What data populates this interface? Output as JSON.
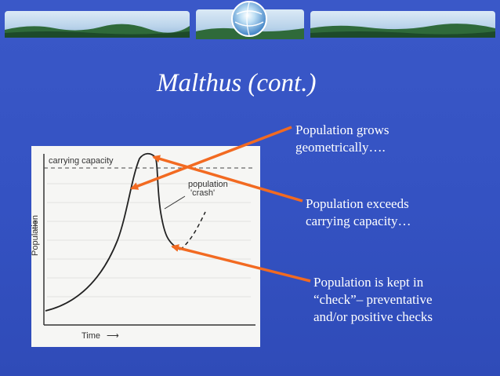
{
  "slide": {
    "title": "Malthus (cont.)"
  },
  "figure": {
    "carrying_capacity_label": "carrying capacity",
    "crash_label_line1": "population",
    "crash_label_line2": "'crash'",
    "y_axis_label": "Population",
    "x_axis_label": "Time"
  },
  "notes": {
    "note1": [
      "Population grows",
      "geometrically…."
    ],
    "note2": [
      "Population exceeds",
      "carrying capacity…"
    ],
    "note3": [
      "Population is kept in",
      "“check”– preventative",
      "and/or positive checks"
    ]
  },
  "colors": {
    "background": "#3a58c8",
    "arrow": "#f26a21",
    "text": "#ffffff"
  }
}
